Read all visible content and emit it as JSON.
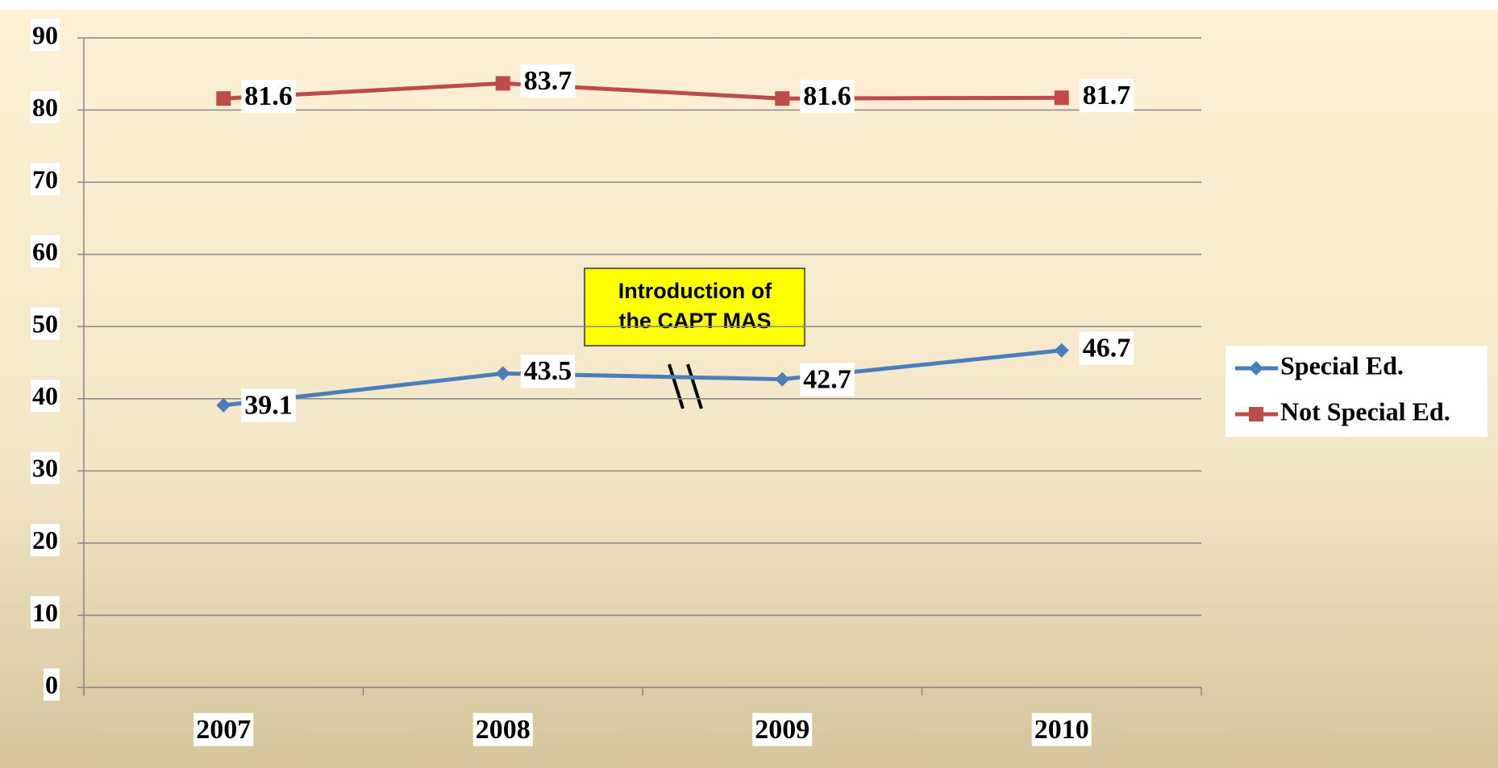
{
  "chart_data": {
    "type": "line",
    "categories": [
      "2007",
      "2008",
      "2009",
      "2010"
    ],
    "series": [
      {
        "name": "Special Ed.",
        "color": "#4a7ebb",
        "marker": "diamond",
        "values": [
          39.1,
          43.5,
          42.7,
          46.7
        ]
      },
      {
        "name": "Not Special Ed.",
        "color": "#be4b48",
        "marker": "square",
        "values": [
          81.6,
          83.7,
          81.6,
          81.7
        ]
      }
    ],
    "ylim": [
      0,
      90
    ],
    "yticks": [
      0,
      10,
      20,
      30,
      40,
      50,
      60,
      70,
      80,
      90
    ],
    "grid": true,
    "legend": "right",
    "annotation": [
      "Introduction of",
      "the  CAPT MAS"
    ]
  }
}
